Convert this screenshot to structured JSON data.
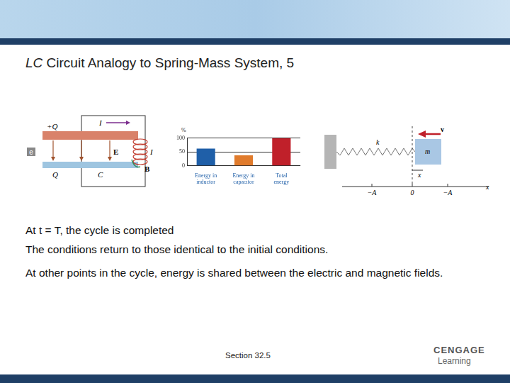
{
  "header": {
    "title": "LC Circuit Analogy to Spring-Mass System, 5"
  },
  "circuit": {
    "panel": "e",
    "top_charge": "+Q",
    "current_top": "I",
    "field": "E",
    "current_coil": "I",
    "magnetic": "B",
    "bottom_charge": "Q",
    "capacitor": "C"
  },
  "chart_data": {
    "type": "bar",
    "axis_label": "%",
    "categories": [
      [
        "Energy in",
        "inductor"
      ],
      [
        "Energy in",
        "capacitor"
      ],
      [
        "Total",
        "energy"
      ]
    ],
    "values": [
      62,
      38,
      100
    ],
    "colors": [
      "#1f5fa8",
      "#e07b2c",
      "#c0202a"
    ],
    "ylim": [
      0,
      100
    ],
    "yticks": [
      0,
      50,
      100
    ],
    "grid": true
  },
  "spring_mass": {
    "spring": "k",
    "mass": "m",
    "velocity": "v",
    "displacement": "x",
    "axis_labels": [
      "−A",
      "0",
      "−A"
    ],
    "axis": "x"
  },
  "bullets": [
    "At t = T, the cycle is completed",
    "The conditions return to those identical to the initial conditions.",
    "At other points in the cycle, energy is shared between the electric and magnetic fields."
  ],
  "footer": {
    "section": "Section  32.5",
    "logo": [
      "CENGAGE",
      "Learning"
    ]
  }
}
